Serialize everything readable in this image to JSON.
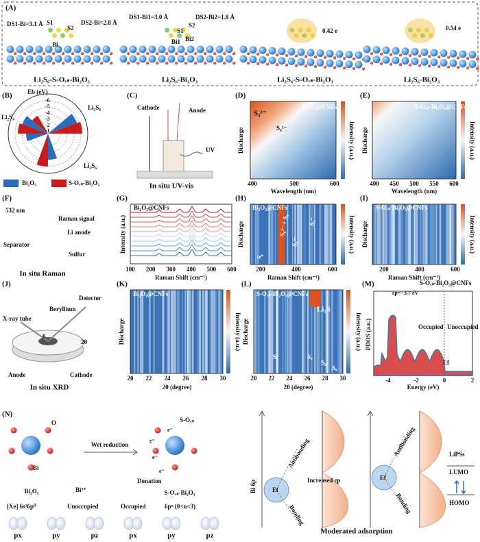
{
  "A": {
    "label": "(A)",
    "texts": [
      "DS1-Bi=3.1 Å",
      "S1",
      "S2",
      "DS2-Bi=2.8 Å",
      "Bi",
      "Li₂S₆-S-Oᵥₛ-Bi₂O₃",
      "DS1-Bi1=3.0 Å",
      "S1",
      "S2",
      "DS2-Bi2=1.8 Å",
      "Bi1",
      "Bi2",
      "Li₂S₆-Bi₂O₃",
      "0.42 e",
      "Li₂S₆-S-Oᵥₛ-Bi₂O₃",
      "0.54 e",
      "Li₂S₆-Bi₂O₃"
    ]
  },
  "B": {
    "label": "(B)",
    "texts": [
      "Eb (eV)",
      "-6",
      "-5",
      "-4",
      "-3",
      "-2",
      "-1",
      "Li₂S₄",
      "Li₂S₈",
      "Li₂S₆",
      "Bi₂O₃",
      "S-Oᵥₛ-Bi₂O₃"
    ]
  },
  "C": {
    "label": "(C)",
    "texts": [
      "Cathode",
      "Anode",
      "UV",
      "In situ UV-vis"
    ]
  },
  "D": {
    "label": "(D)",
    "texts": [
      "Bi₂O₃@CNFs",
      "S₄²⁻",
      "S₆²⁻",
      "Discharge",
      "Intensity (a.u.)",
      "400",
      "500",
      "600",
      "Wavelength (nm)"
    ]
  },
  "E": {
    "label": "(E)",
    "texts": [
      "S-Oᵥₛ-Bi₂O₃@CNFs",
      "Discharge",
      "Intensity (a.u.)",
      "400",
      "450",
      "500",
      "550",
      "600",
      "Wavelength (nm)"
    ]
  },
  "F": {
    "label": "(F)",
    "texts": [
      "532 nm",
      "Raman signal",
      "Li anode",
      "Separator",
      "Sulfur",
      "In situ Raman"
    ]
  },
  "G": {
    "label": "(G)",
    "texts": [
      "Bi₂O₃@CNFs",
      "Intensity (a.u.)",
      "100",
      "200",
      "300",
      "400",
      "500",
      "600",
      "Raman Shift (cm⁻¹)"
    ]
  },
  "H": {
    "label": "(H)",
    "texts": [
      "Bi₂O₃@CNFs",
      "S₈",
      "S₆²⁻ + S₈",
      "S₄²⁻",
      "S₃⁻",
      "Discharge",
      "Intensity (a.u.)",
      "200",
      "400",
      "600",
      "Raman Shift (cm⁻¹)"
    ]
  },
  "I": {
    "label": "(I)",
    "texts": [
      "S-Oᵥₛ-Bi₂O₃@CNFs",
      "Discharge",
      "Intensity (a.u.)",
      "200",
      "400",
      "600",
      "Raman Shift (cm⁻¹)"
    ]
  },
  "J": {
    "label": "(J)",
    "texts": [
      "X-ray tube",
      "Beryllium",
      "Detector",
      "θ",
      "2θ",
      "Anode",
      "Cathode",
      "In situ XRD"
    ]
  },
  "K": {
    "label": "(K)",
    "texts": [
      "Bi₂O₃@CNFs",
      "Discharge",
      "Intensity (a.u.)",
      "20",
      "22",
      "24",
      "26",
      "28",
      "30",
      "2θ (degree)"
    ]
  },
  "L": {
    "label": "(L)",
    "texts": [
      "S-Oᵥₛ-Bi₂O₃@CNFs",
      "Li₂S",
      "S₈",
      "S₈",
      "S₈",
      "S₈",
      "Discharge",
      "Intensity (a.u.)",
      "20",
      "22",
      "24",
      "26",
      "28",
      "30",
      "2θ (degree)"
    ]
  },
  "M": {
    "label": "(M)",
    "texts": [
      "S-Oᵥₛ-Bi₂O₃@CNFs",
      "εp=−3.7 eV",
      "Occupied",
      "Unoccupied",
      "Ef",
      "PDOS (a.u.)",
      "Energy (eV)",
      "-4",
      "-2",
      "0",
      "2"
    ]
  },
  "N": {
    "label": "(N)",
    "texts": [
      "O",
      "Bi",
      "Bi₂O₃",
      "Wet reduction",
      "S-Oᵥₛ",
      "e⁻",
      "e⁻",
      "e⁻",
      "e⁻",
      "Donation",
      "S-Oᵥₛ-Bi₂O₃",
      "Bi³⁺",
      "[Xe] 6s²6p⁰",
      "Unoccupied",
      "Occupied",
      "6pⁿ (0<n<3)",
      "px",
      "py",
      "pz",
      "px",
      "py",
      "pz",
      "Bi 6p",
      "Antibonding",
      "Bonding",
      "Ef",
      "Increased εp",
      "Antibonding",
      "Bonding",
      "Ef",
      "LiPSs",
      "LUMO",
      "HOMO",
      "Moderated adsorption"
    ]
  }
}
